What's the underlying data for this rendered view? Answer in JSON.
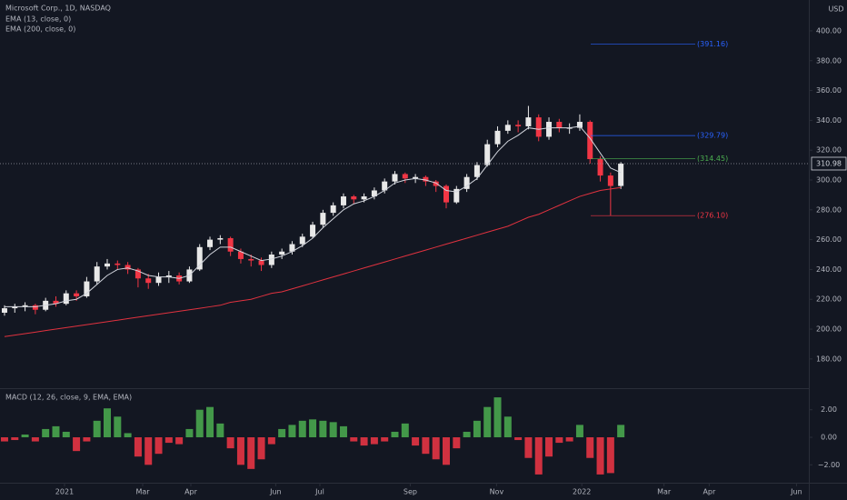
{
  "chart_data": [
    {
      "type": "candlestick",
      "title": "Microsoft Corp., 1D, NASDAQ",
      "currency": "USD",
      "up_color": "#e8e8e8",
      "down_color": "#f23645",
      "x": [
        0,
        1,
        2,
        3,
        4,
        5,
        6,
        7,
        8,
        9,
        10,
        11,
        12,
        13,
        14,
        15,
        16,
        17,
        18,
        19,
        20,
        21,
        22,
        23,
        24,
        25,
        26,
        27,
        28,
        29,
        30,
        31,
        32,
        33,
        34,
        35,
        36,
        37,
        38,
        39,
        40,
        41,
        42,
        43,
        44,
        45,
        46,
        47,
        48,
        49,
        50,
        51,
        52,
        53,
        54,
        55,
        56,
        57,
        58,
        59,
        60
      ],
      "open": [
        211,
        214,
        215,
        216,
        213,
        219,
        217,
        224,
        222,
        232,
        242,
        244,
        243,
        240,
        234,
        231,
        235,
        236,
        232,
        240,
        255,
        260,
        261,
        252,
        247,
        246,
        243,
        250,
        252,
        257,
        262,
        270,
        278,
        283,
        289,
        287,
        289,
        293,
        299,
        304,
        301,
        302,
        299,
        296,
        285,
        294,
        302,
        310,
        324,
        333,
        337,
        336,
        342,
        329,
        339,
        335,
        335,
        339,
        314,
        303,
        296
      ],
      "high": [
        216,
        217,
        218,
        217,
        221,
        222,
        226,
        226,
        235,
        245,
        247,
        246,
        245,
        241,
        237,
        238,
        239,
        238,
        242,
        257,
        262,
        263,
        262,
        254,
        250,
        248,
        252,
        254,
        259,
        264,
        272,
        280,
        285,
        291,
        290,
        291,
        295,
        301,
        306,
        305,
        304,
        303,
        300,
        297,
        296,
        304,
        312,
        327,
        336,
        340,
        340,
        349.67,
        344,
        342,
        341,
        338,
        344,
        340,
        316,
        305,
        312
      ],
      "low": [
        209,
        211,
        212,
        210,
        212,
        215,
        216,
        219,
        221,
        230,
        240,
        240,
        237,
        228,
        227,
        229,
        231,
        230,
        231,
        239,
        253,
        257,
        249,
        244,
        242,
        239,
        241,
        247,
        250,
        255,
        261,
        268,
        276,
        281,
        284,
        285,
        287,
        291,
        297,
        298,
        298,
        296,
        292,
        281,
        284,
        292,
        300,
        309,
        322,
        331,
        332,
        334,
        326,
        327,
        332,
        331,
        333,
        311,
        299,
        276.1,
        294
      ],
      "close": [
        214,
        215,
        216,
        213,
        219,
        217,
        224,
        222,
        232,
        242,
        244,
        243,
        240,
        234,
        231,
        235,
        236,
        232,
        240,
        255,
        260,
        261,
        252,
        247,
        246,
        243,
        250,
        252,
        257,
        262,
        270,
        278,
        283,
        289,
        287,
        289,
        293,
        299,
        304,
        301,
        302,
        299,
        296,
        285,
        294,
        302,
        310,
        324,
        333,
        337,
        336,
        342,
        329,
        339,
        335,
        335,
        339,
        314,
        303,
        296,
        310.98
      ],
      "series": [
        {
          "name": "EMA (13, close, 0)",
          "color": "#d1d4dc",
          "values": [
            215,
            215,
            215,
            215,
            216,
            217,
            219,
            220,
            224,
            230,
            236,
            240,
            241,
            239,
            236,
            235,
            235,
            234,
            236,
            243,
            250,
            255,
            255,
            252,
            249,
            246,
            247,
            249,
            252,
            256,
            261,
            268,
            274,
            280,
            284,
            286,
            289,
            293,
            298,
            300,
            301,
            300,
            298,
            293,
            292,
            296,
            301,
            310,
            319,
            326,
            330,
            335,
            334,
            335,
            335,
            335,
            336,
            328,
            318,
            308,
            305
          ]
        },
        {
          "name": "EMA (200, close, 0)",
          "color": "#e0323f",
          "values": [
            195,
            196,
            197,
            198,
            199,
            200,
            201,
            202,
            203,
            204,
            205,
            206,
            207,
            208,
            209,
            210,
            211,
            212,
            213,
            214,
            215,
            216,
            218,
            219,
            220,
            222,
            224,
            225,
            227,
            229,
            231,
            233,
            235,
            237,
            239,
            241,
            243,
            245,
            247,
            249,
            251,
            253,
            255,
            257,
            259,
            261,
            263,
            265,
            267,
            269,
            272,
            275,
            277,
            280,
            283,
            286,
            289,
            291,
            293,
            294,
            295
          ]
        }
      ],
      "last_price": 310.98,
      "annotations": [
        {
          "value": 391.16,
          "label": "(391.16)",
          "color": "#2962ff"
        },
        {
          "value": 329.79,
          "label": "(329.79)",
          "color": "#2962ff"
        },
        {
          "value": 314.45,
          "label": "(314.45)",
          "color": "#4caf50"
        },
        {
          "value": 276.1,
          "label": "(276.10)",
          "color": "#f23645"
        }
      ],
      "xlim": [
        -0.44,
        78.3
      ],
      "ylim": [
        160.4,
        420.7
      ],
      "yticks": [
        {
          "value": 180,
          "label": "180.00"
        },
        {
          "value": 200,
          "label": "200.00"
        },
        {
          "value": 220,
          "label": "220.00"
        },
        {
          "value": 240,
          "label": "240.00"
        },
        {
          "value": 260,
          "label": "260.00"
        },
        {
          "value": 280,
          "label": "280.00"
        },
        {
          "value": 300,
          "label": "300.00"
        },
        {
          "value": 320,
          "label": "320.00"
        },
        {
          "value": 340,
          "label": "340.00"
        },
        {
          "value": 360,
          "label": "360.00"
        },
        {
          "value": 380,
          "label": "380.00"
        },
        {
          "value": 400,
          "label": "400.00"
        }
      ]
    },
    {
      "type": "bar",
      "title": "MACD (12, 26, close, 9, EMA, EMA)",
      "up_color": "#4caf50",
      "down_color": "#f23645",
      "x": [
        0,
        1,
        2,
        3,
        4,
        5,
        6,
        7,
        8,
        9,
        10,
        11,
        12,
        13,
        14,
        15,
        16,
        17,
        18,
        19,
        20,
        21,
        22,
        23,
        24,
        25,
        26,
        27,
        28,
        29,
        30,
        31,
        32,
        33,
        34,
        35,
        36,
        37,
        38,
        39,
        40,
        41,
        42,
        43,
        44,
        45,
        46,
        47,
        48,
        49,
        50,
        51,
        52,
        53,
        54,
        55,
        56,
        57,
        58,
        59,
        60
      ],
      "values": [
        -0.3,
        -0.2,
        0.2,
        -0.3,
        0.6,
        0.8,
        0.4,
        -1.0,
        -0.3,
        1.2,
        2.1,
        1.5,
        0.3,
        -1.4,
        -2.0,
        -1.2,
        -0.4,
        -0.5,
        0.6,
        2.0,
        2.2,
        1.0,
        -0.8,
        -2.0,
        -2.3,
        -1.6,
        -0.5,
        0.6,
        0.9,
        1.2,
        1.3,
        1.2,
        1.1,
        0.8,
        -0.3,
        -0.6,
        -0.5,
        -0.3,
        0.4,
        1.0,
        -0.6,
        -1.2,
        -1.6,
        -2.0,
        -0.8,
        0.4,
        1.2,
        2.2,
        2.9,
        1.5,
        -0.2,
        -1.5,
        -2.7,
        -1.4,
        -0.4,
        -0.3,
        0.9,
        -1.5,
        -2.7,
        -2.6,
        0.9
      ],
      "xlim": [
        -0.44,
        78.3
      ],
      "ylim": [
        -3.3,
        3.5
      ],
      "yticks": [
        {
          "value": -2,
          "label": "−2.00"
        },
        {
          "value": 0,
          "label": "0.00"
        },
        {
          "value": 2,
          "label": "2.00"
        }
      ],
      "xticks": [
        {
          "value": 5.84,
          "label": "2021"
        },
        {
          "value": 13.45,
          "label": "Mar"
        },
        {
          "value": 18.14,
          "label": "Apr"
        },
        {
          "value": 26.4,
          "label": "Jun"
        },
        {
          "value": 30.7,
          "label": "Jul"
        },
        {
          "value": 39.5,
          "label": "Sep"
        },
        {
          "value": 47.9,
          "label": "Nov"
        },
        {
          "value": 56.2,
          "label": "2022"
        },
        {
          "value": 64.2,
          "label": "Mar"
        },
        {
          "value": 68.6,
          "label": "Apr"
        },
        {
          "value": 77.1,
          "label": "Jun"
        }
      ]
    }
  ]
}
